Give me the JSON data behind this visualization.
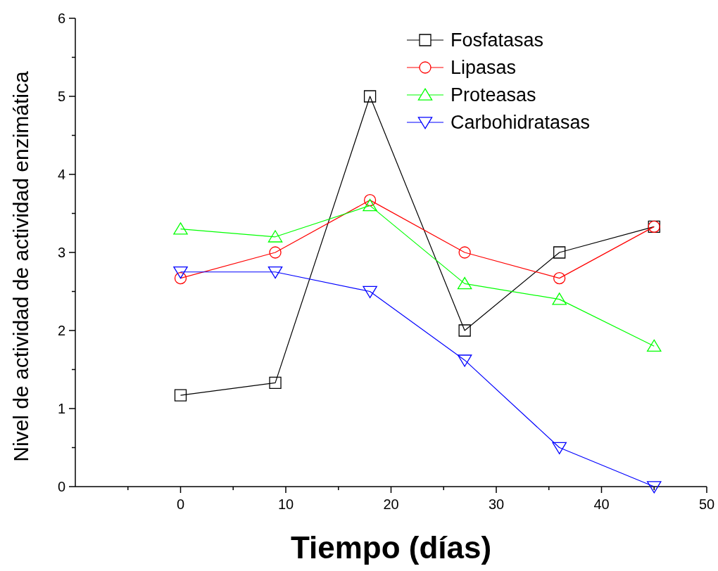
{
  "chart_data": {
    "type": "line",
    "xlabel": "Tiempo (días)",
    "ylabel": "Nivel de actividad de actividad enzimática",
    "x": [
      0,
      9,
      18,
      27,
      36,
      45
    ],
    "series": [
      {
        "name": "Fosfatasas",
        "color": "#000000",
        "marker": "square",
        "values": [
          1.17,
          1.33,
          5,
          2,
          3,
          3.33
        ]
      },
      {
        "name": "Lipasas",
        "color": "#ff0000",
        "marker": "circle",
        "values": [
          2.67,
          3,
          3.67,
          3,
          2.67,
          3.33
        ]
      },
      {
        "name": "Proteasas",
        "color": "#00ff00",
        "marker": "triangle",
        "values": [
          3.3,
          3.2,
          3.6,
          2.6,
          2.4,
          1.8
        ]
      },
      {
        "name": "Carbohidratasas",
        "color": "#0000ff",
        "marker": "triangle-down",
        "values": [
          2.75,
          2.75,
          2.5,
          1.62,
          0.5,
          0
        ]
      }
    ],
    "xlim": [
      -10,
      50
    ],
    "xticks": [
      {
        "value": -5,
        "label": null
      },
      0,
      {
        "value": 5,
        "label": null
      },
      10,
      {
        "value": 15,
        "label": null
      },
      20,
      {
        "value": 25,
        "label": null
      },
      30,
      {
        "value": 35,
        "label": null
      },
      40,
      {
        "value": 45,
        "label": null
      },
      50
    ],
    "ylim": [
      0,
      6
    ],
    "yticks": [
      0,
      {
        "value": 0.5,
        "label": null
      },
      1,
      {
        "value": 1.5,
        "label": null
      },
      2,
      {
        "value": 2.5,
        "label": null
      },
      3,
      {
        "value": 3.5,
        "label": null
      },
      4,
      {
        "value": 4.5,
        "label": null
      },
      5,
      {
        "value": 5.5,
        "label": null
      },
      6
    ],
    "grid": false,
    "legend": "top right",
    "line_style": "solid"
  }
}
